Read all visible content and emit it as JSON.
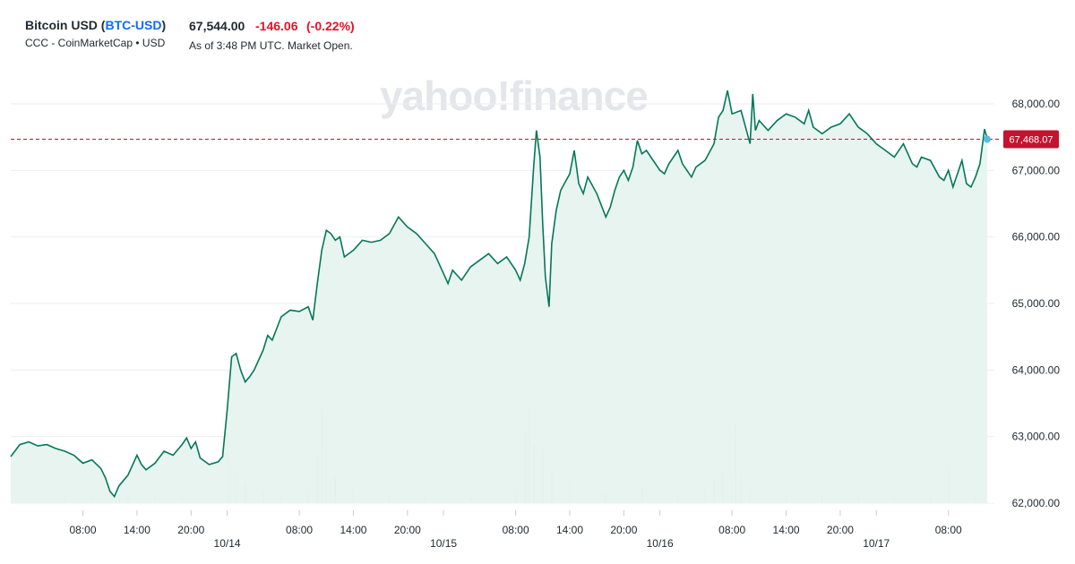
{
  "header": {
    "name": "Bitcoin USD",
    "ticker": "BTC-USD",
    "source": "CCC - CoinMarketCap • USD",
    "price": "67,544.00",
    "change": "-146.06",
    "change_pct": "(-0.22%)",
    "as_of": "As of 3:48 PM UTC. Market Open."
  },
  "watermark": "yahoo!finance",
  "colors": {
    "line": "#047857",
    "area": "#e6f3ee",
    "ref_line": "#c4122f",
    "last_dot": "#5ab9e8",
    "volume": "#d6d9de"
  },
  "chart_data": {
    "type": "area",
    "title": "",
    "xlabel": "",
    "ylabel": "",
    "ylim": [
      62000,
      68000
    ],
    "y_ticks": [
      "68,000.00",
      "67,000.00",
      "66,000.00",
      "65,000.00",
      "64,000.00",
      "63,000.00",
      "62,000.00"
    ],
    "y_tick_values": [
      68000,
      67000,
      66000,
      65000,
      64000,
      63000,
      62000
    ],
    "x_ticks": [
      {
        "h": 8,
        "label": "08:00"
      },
      {
        "h": 14,
        "label": "14:00"
      },
      {
        "h": 20,
        "label": "20:00"
      },
      {
        "h": 24,
        "label": "10/14"
      },
      {
        "h": 32,
        "label": "08:00"
      },
      {
        "h": 38,
        "label": "14:00"
      },
      {
        "h": 44,
        "label": "20:00"
      },
      {
        "h": 48,
        "label": "10/15"
      },
      {
        "h": 56,
        "label": "08:00"
      },
      {
        "h": 62,
        "label": "14:00"
      },
      {
        "h": 68,
        "label": "20:00"
      },
      {
        "h": 72,
        "label": "10/16"
      },
      {
        "h": 80,
        "label": "08:00"
      },
      {
        "h": 86,
        "label": "14:00"
      },
      {
        "h": 92,
        "label": "20:00"
      },
      {
        "h": 96,
        "label": "10/17"
      },
      {
        "h": 104,
        "label": "08:00"
      }
    ],
    "xlim_hours": [
      0,
      108.3
    ],
    "reference": {
      "value": 67468.07,
      "label": "67,468.07"
    },
    "series": [
      {
        "values": [
          [
            0,
            62700
          ],
          [
            1,
            62880
          ],
          [
            2,
            62920
          ],
          [
            3,
            62860
          ],
          [
            4,
            62880
          ],
          [
            5,
            62820
          ],
          [
            6,
            62780
          ],
          [
            7,
            62720
          ],
          [
            8,
            62600
          ],
          [
            9,
            62650
          ],
          [
            10,
            62520
          ],
          [
            10.5,
            62380
          ],
          [
            11,
            62180
          ],
          [
            11.5,
            62100
          ],
          [
            12,
            62260
          ],
          [
            13,
            62420
          ],
          [
            14,
            62720
          ],
          [
            14.5,
            62580
          ],
          [
            15,
            62500
          ],
          [
            16,
            62600
          ],
          [
            17,
            62780
          ],
          [
            18,
            62720
          ],
          [
            19,
            62880
          ],
          [
            19.5,
            62980
          ],
          [
            20,
            62820
          ],
          [
            20.5,
            62920
          ],
          [
            21,
            62680
          ],
          [
            22,
            62580
          ],
          [
            23,
            62620
          ],
          [
            23.5,
            62700
          ],
          [
            24,
            63400
          ],
          [
            24.5,
            64200
          ],
          [
            25,
            64250
          ],
          [
            25.5,
            64000
          ],
          [
            26,
            63820
          ],
          [
            26.5,
            63900
          ],
          [
            27,
            64000
          ],
          [
            28,
            64300
          ],
          [
            28.5,
            64520
          ],
          [
            29,
            64450
          ],
          [
            30,
            64800
          ],
          [
            31,
            64900
          ],
          [
            32,
            64880
          ],
          [
            33,
            64950
          ],
          [
            33.5,
            64750
          ],
          [
            34,
            65300
          ],
          [
            34.5,
            65800
          ],
          [
            35,
            66100
          ],
          [
            35.5,
            66050
          ],
          [
            36,
            65950
          ],
          [
            36.5,
            66000
          ],
          [
            37,
            65700
          ],
          [
            38,
            65800
          ],
          [
            39,
            65950
          ],
          [
            40,
            65920
          ],
          [
            41,
            65950
          ],
          [
            42,
            66050
          ],
          [
            43,
            66300
          ],
          [
            44,
            66150
          ],
          [
            45,
            66050
          ],
          [
            46,
            65900
          ],
          [
            47,
            65750
          ],
          [
            48,
            65450
          ],
          [
            48.5,
            65300
          ],
          [
            49,
            65500
          ],
          [
            50,
            65350
          ],
          [
            51,
            65550
          ],
          [
            52,
            65650
          ],
          [
            53,
            65750
          ],
          [
            54,
            65600
          ],
          [
            55,
            65700
          ],
          [
            56,
            65500
          ],
          [
            56.5,
            65350
          ],
          [
            57,
            65600
          ],
          [
            57.5,
            66000
          ],
          [
            58,
            67050
          ],
          [
            58.3,
            67600
          ],
          [
            58.7,
            67200
          ],
          [
            59,
            66200
          ],
          [
            59.3,
            65400
          ],
          [
            59.7,
            64950
          ],
          [
            60,
            65900
          ],
          [
            60.5,
            66400
          ],
          [
            61,
            66700
          ],
          [
            62,
            66950
          ],
          [
            62.5,
            67300
          ],
          [
            63,
            66800
          ],
          [
            63.5,
            66650
          ],
          [
            64,
            66900
          ],
          [
            65,
            66650
          ],
          [
            66,
            66300
          ],
          [
            66.5,
            66450
          ],
          [
            67,
            66700
          ],
          [
            67.5,
            66900
          ],
          [
            68,
            67000
          ],
          [
            68.5,
            66850
          ],
          [
            69,
            67050
          ],
          [
            69.5,
            67450
          ],
          [
            70,
            67250
          ],
          [
            70.5,
            67300
          ],
          [
            71,
            67200
          ],
          [
            72,
            67000
          ],
          [
            72.5,
            66950
          ],
          [
            73,
            67100
          ],
          [
            74,
            67300
          ],
          [
            74.5,
            67100
          ],
          [
            75,
            67000
          ],
          [
            75.5,
            66900
          ],
          [
            76,
            67050
          ],
          [
            77,
            67150
          ],
          [
            78,
            67400
          ],
          [
            78.5,
            67800
          ],
          [
            79,
            67900
          ],
          [
            79.5,
            68200
          ],
          [
            80,
            67850
          ],
          [
            81,
            67900
          ],
          [
            82,
            67400
          ],
          [
            82.3,
            68150
          ],
          [
            82.6,
            67600
          ],
          [
            83,
            67750
          ],
          [
            84,
            67600
          ],
          [
            85,
            67750
          ],
          [
            86,
            67850
          ],
          [
            87,
            67800
          ],
          [
            88,
            67700
          ],
          [
            88.5,
            67900
          ],
          [
            89,
            67650
          ],
          [
            90,
            67550
          ],
          [
            91,
            67650
          ],
          [
            92,
            67700
          ],
          [
            93,
            67850
          ],
          [
            94,
            67650
          ],
          [
            95,
            67550
          ],
          [
            96,
            67400
          ],
          [
            97,
            67300
          ],
          [
            98,
            67200
          ],
          [
            99,
            67400
          ],
          [
            100,
            67100
          ],
          [
            100.5,
            67050
          ],
          [
            101,
            67200
          ],
          [
            102,
            67150
          ],
          [
            103,
            66900
          ],
          [
            103.5,
            66850
          ],
          [
            104,
            67000
          ],
          [
            104.5,
            66750
          ],
          [
            105,
            66950
          ],
          [
            105.5,
            67150
          ],
          [
            106,
            66800
          ],
          [
            106.5,
            66750
          ],
          [
            107,
            66900
          ],
          [
            107.5,
            67100
          ],
          [
            108,
            67620
          ],
          [
            108.3,
            67480
          ]
        ]
      }
    ],
    "volume": [
      [
        6,
        62060
      ],
      [
        9,
        62100
      ],
      [
        12,
        62140
      ],
      [
        13,
        62120
      ],
      [
        16,
        62100
      ],
      [
        19,
        62090
      ],
      [
        24,
        63300
      ],
      [
        24.3,
        62650
      ],
      [
        25,
        62500
      ],
      [
        26,
        62300
      ],
      [
        28,
        62200
      ],
      [
        30,
        62100
      ],
      [
        33,
        62200
      ],
      [
        34,
        62700
      ],
      [
        34.5,
        63400
      ],
      [
        35,
        62800
      ],
      [
        36,
        62400
      ],
      [
        38,
        62200
      ],
      [
        42,
        62150
      ],
      [
        46,
        62100
      ],
      [
        51,
        62080
      ],
      [
        56,
        62200
      ],
      [
        57,
        63100
      ],
      [
        57.5,
        63420
      ],
      [
        58,
        62900
      ],
      [
        59,
        62800
      ],
      [
        60,
        62500
      ],
      [
        62,
        62300
      ],
      [
        66,
        62150
      ],
      [
        70,
        62250
      ],
      [
        74,
        62150
      ],
      [
        77,
        62200
      ],
      [
        78,
        62350
      ],
      [
        79,
        62500
      ],
      [
        80,
        62400
      ],
      [
        80.4,
        63200
      ],
      [
        81,
        62400
      ],
      [
        82,
        62200
      ],
      [
        86,
        62100
      ],
      [
        90,
        62100
      ],
      [
        94,
        62090
      ],
      [
        98,
        62080
      ],
      [
        102,
        62100
      ],
      [
        104,
        62500
      ],
      [
        107,
        62100
      ]
    ]
  }
}
